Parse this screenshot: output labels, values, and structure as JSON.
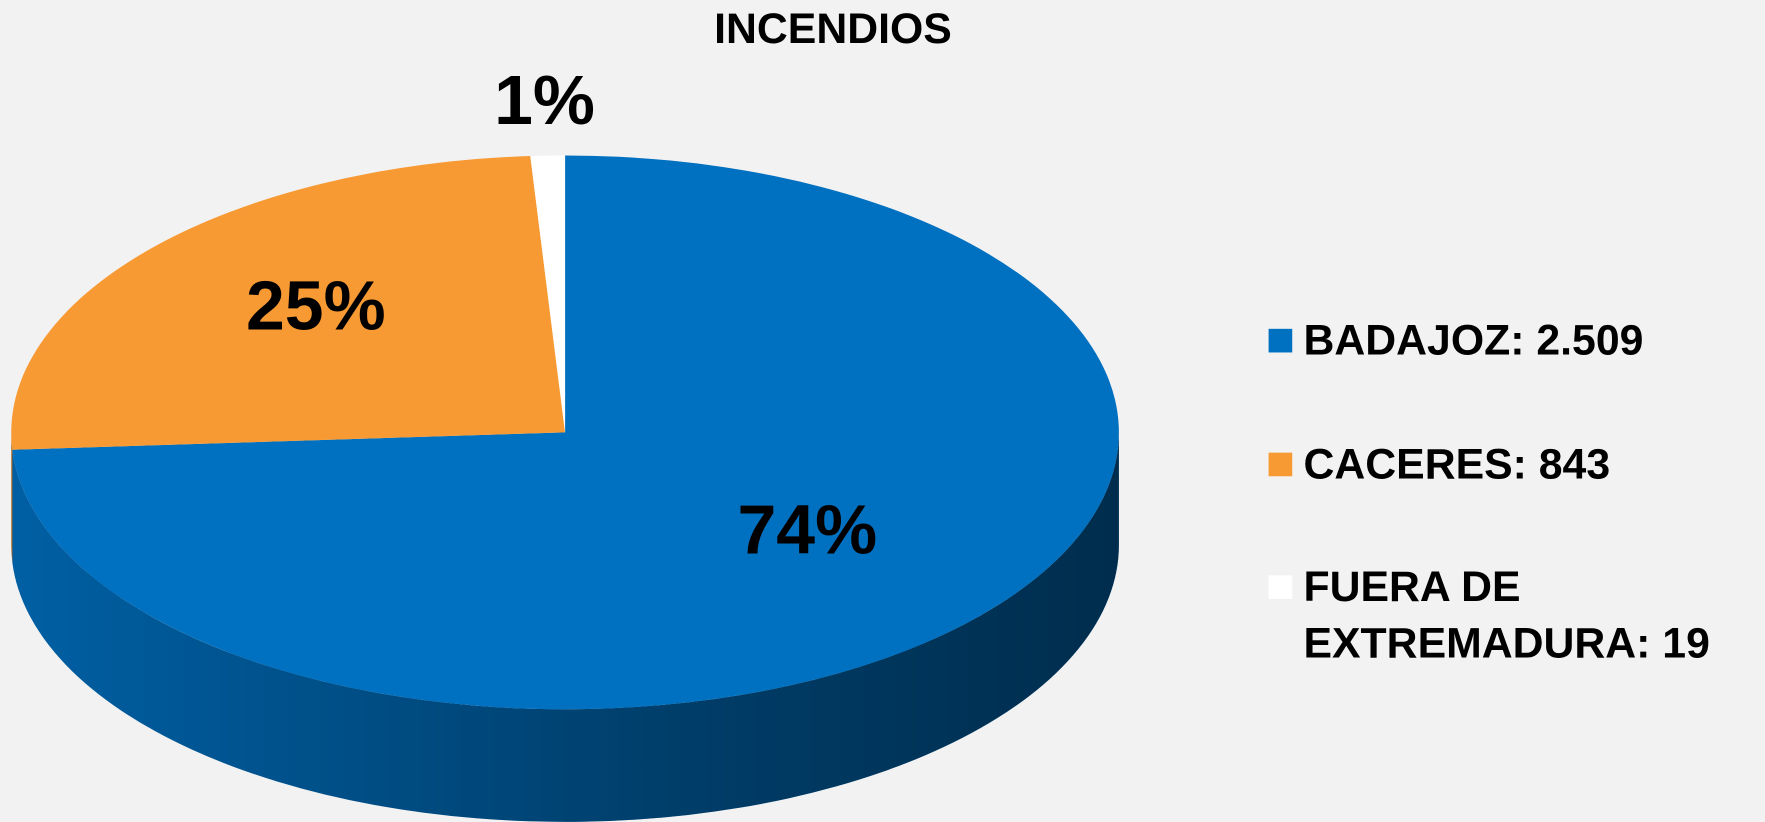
{
  "chart_data": {
    "type": "pie",
    "title": "INCENDIOS",
    "categories": [
      "BADAJOZ: 2.509",
      "CACERES: 843",
      "FUERA DE EXTREMADURA: 19"
    ],
    "values": [
      74,
      25,
      1
    ],
    "value_labels": [
      "74%",
      "25%",
      "1%"
    ],
    "colors": [
      "#0070c0",
      "#f79a34",
      "#ffffff"
    ],
    "legend": "right"
  }
}
